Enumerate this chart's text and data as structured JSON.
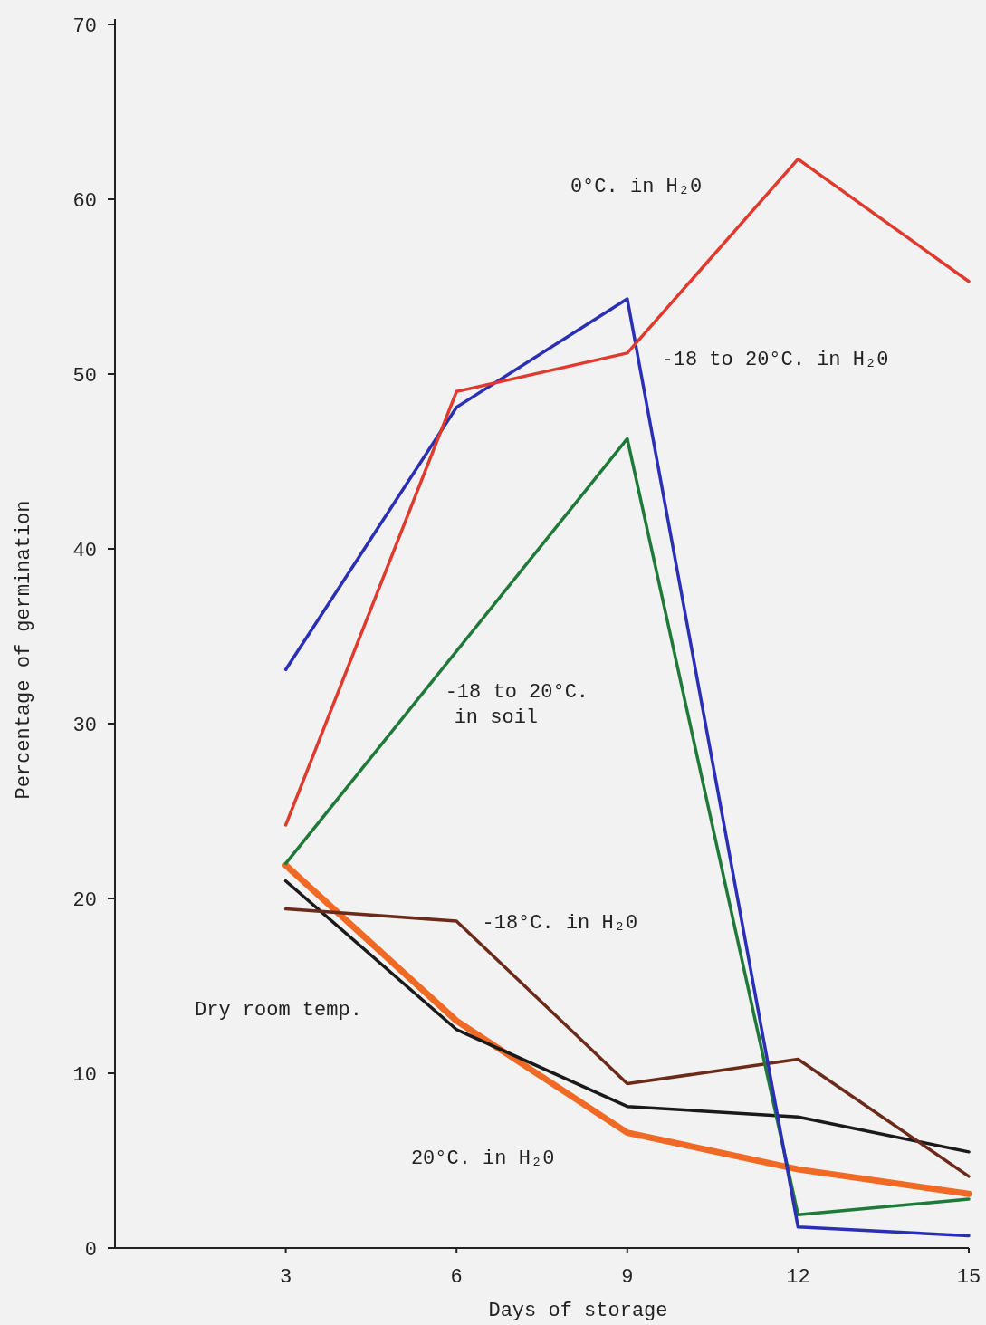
{
  "chart_data": {
    "type": "line",
    "xlabel": "Days of storage",
    "ylabel": "Percentage of germination",
    "xlim": [
      0,
      15
    ],
    "ylim": [
      0,
      70
    ],
    "xticks": [
      3,
      6,
      9,
      12,
      15
    ],
    "yticks": [
      0,
      10,
      20,
      30,
      40,
      50,
      60,
      70
    ],
    "grid": false,
    "marker": "none",
    "line_style": "solid",
    "series": [
      {
        "name": "20°C. in H₂0",
        "color": "#f06a25",
        "x": [
          3,
          6,
          9,
          12,
          15
        ],
        "values": [
          21.9,
          13.0,
          6.6,
          4.5,
          3.1
        ]
      },
      {
        "name": "Dry room temp.",
        "color": "#1a1a1a",
        "x": [
          3,
          6,
          9,
          12,
          15
        ],
        "values": [
          21.0,
          12.5,
          8.1,
          7.5,
          5.5
        ]
      },
      {
        "name": "-18°C. in H₂0",
        "color": "#6b2a1a",
        "x": [
          3,
          6,
          9,
          12,
          15
        ],
        "values": [
          19.4,
          18.7,
          9.4,
          10.8,
          4.1
        ]
      },
      {
        "name": "-18 to 20°C. in soil",
        "color": "#1f7a3a",
        "x": [
          3,
          9,
          12,
          15
        ],
        "values": [
          22.0,
          46.3,
          1.9,
          2.8
        ]
      },
      {
        "name": "-18 to 20°C. in H₂0",
        "color": "#2b2fb5",
        "x": [
          3,
          6,
          9,
          12,
          15
        ],
        "values": [
          33.1,
          48.1,
          54.3,
          1.2,
          0.7
        ]
      },
      {
        "name": "0°C. in H₂0",
        "color": "#e03a2e",
        "x": [
          3,
          6,
          9,
          12,
          15
        ],
        "values": [
          24.2,
          49.0,
          51.2,
          62.3,
          55.3
        ]
      }
    ]
  }
}
